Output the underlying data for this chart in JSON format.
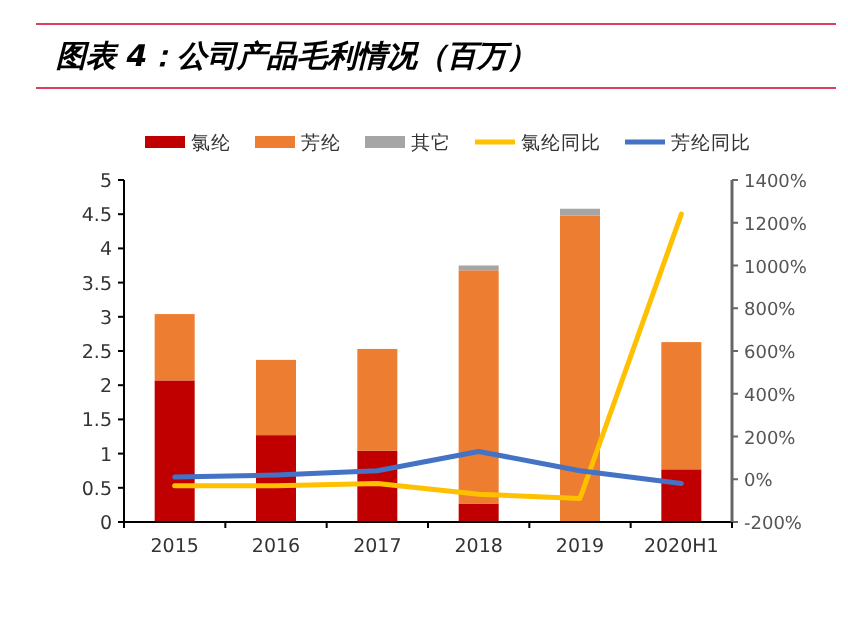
{
  "chart_data": {
    "type": "bar",
    "title": "图表 4：公司产品毛利情况（百万）",
    "stacked": true,
    "legend": "top",
    "categories": [
      "2015",
      "2016",
      "2017",
      "2018",
      "2019",
      "2020H1"
    ],
    "series": [
      {
        "name": "氯纶",
        "color": "#c00000",
        "values": [
          2.07,
          1.27,
          1.04,
          0.27,
          null,
          0.77
        ]
      },
      {
        "name": "芳纶",
        "color": "#ed7d31",
        "values": [
          0.97,
          1.1,
          1.49,
          3.41,
          4.48,
          1.86
        ]
      },
      {
        "name": "其它",
        "color": "#a5a5a5",
        "values": [
          null,
          null,
          null,
          0.07,
          0.1,
          null
        ]
      },
      {
        "name": "氯纶同比",
        "type": "line",
        "axis": "y2",
        "color": "#ffc000",
        "values": [
          -30,
          -30,
          -20,
          -70,
          -90,
          1240
        ]
      },
      {
        "name": "芳纶同比",
        "type": "line",
        "axis": "y2",
        "color": "#4472c4",
        "values": [
          10,
          20,
          40,
          130,
          40,
          -20
        ]
      }
    ],
    "ylim": [
      0,
      5
    ],
    "yticks": [
      0,
      0.5,
      1,
      1.5,
      2,
      2.5,
      3,
      3.5,
      4,
      4.5,
      5
    ],
    "y2lim": [
      -200,
      1400
    ],
    "y2ticks": [
      {
        "value": -200,
        "label": "-200%"
      },
      {
        "value": 0,
        "label": "0%"
      },
      {
        "value": 200,
        "label": "200%"
      },
      {
        "value": 400,
        "label": "400%"
      },
      {
        "value": 600,
        "label": "600%"
      },
      {
        "value": 800,
        "label": "800%"
      },
      {
        "value": 1000,
        "label": "1000%"
      },
      {
        "value": 1200,
        "label": "1200%"
      },
      {
        "value": 1400,
        "label": "1400%"
      }
    ]
  }
}
